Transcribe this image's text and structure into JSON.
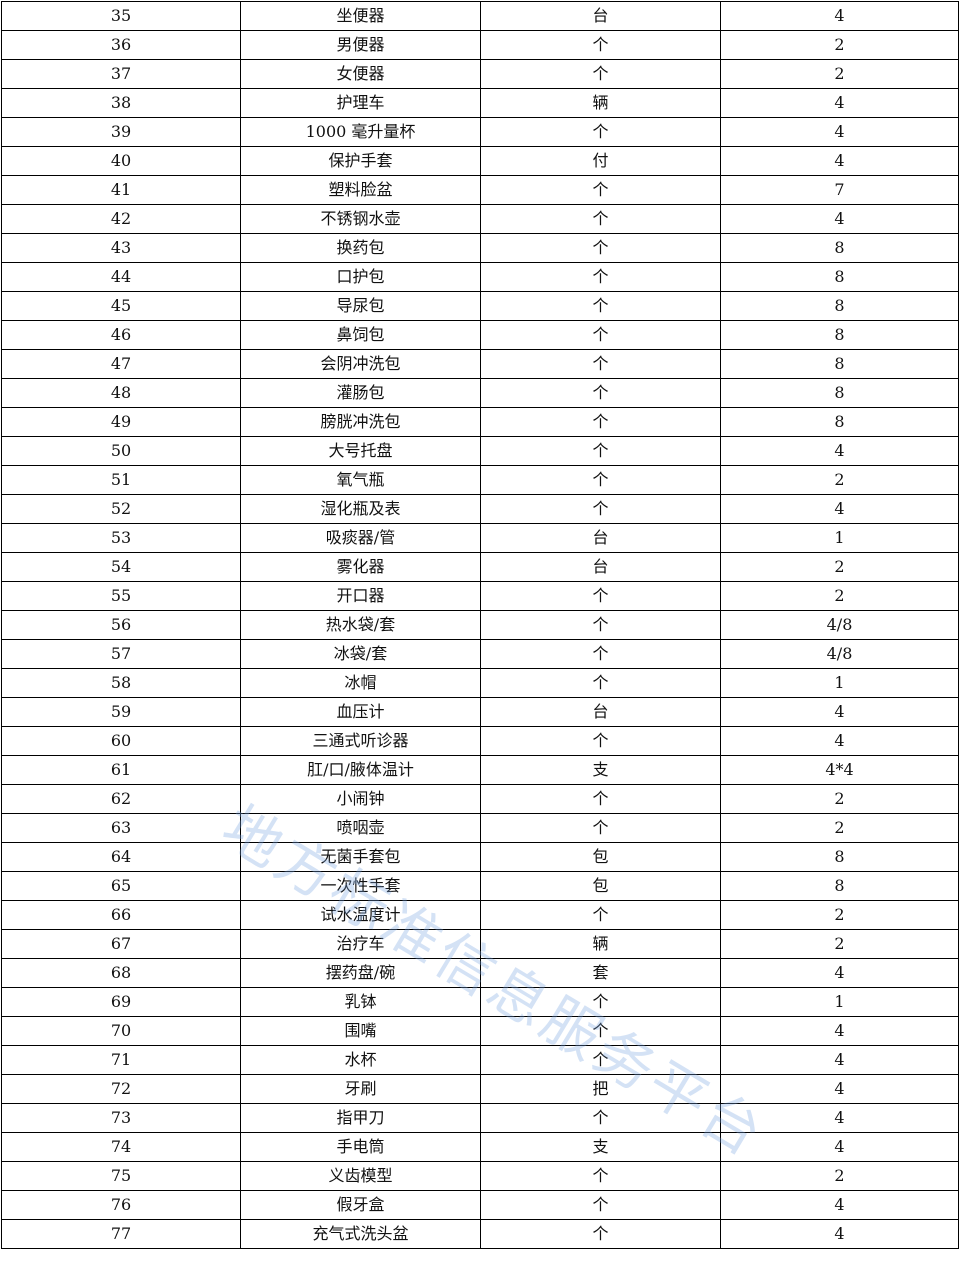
{
  "table": {
    "rows": [
      [
        "35",
        "坐便器",
        "台",
        "4"
      ],
      [
        "36",
        "男便器",
        "个",
        "2"
      ],
      [
        "37",
        "女便器",
        "个",
        "2"
      ],
      [
        "38",
        "护理车",
        "辆",
        "4"
      ],
      [
        "39",
        "1000 毫升量杯",
        "个",
        "4"
      ],
      [
        "40",
        "保护手套",
        "付",
        "4"
      ],
      [
        "41",
        "塑料脸盆",
        "个",
        "7"
      ],
      [
        "42",
        "不锈钢水壶",
        "个",
        "4"
      ],
      [
        "43",
        "换药包",
        "个",
        "8"
      ],
      [
        "44",
        "口护包",
        "个",
        "8"
      ],
      [
        "45",
        "导尿包",
        "个",
        "8"
      ],
      [
        "46",
        "鼻饲包",
        "个",
        "8"
      ],
      [
        "47",
        "会阴冲洗包",
        "个",
        "8"
      ],
      [
        "48",
        "灌肠包",
        "个",
        "8"
      ],
      [
        "49",
        "膀胱冲洗包",
        "个",
        "8"
      ],
      [
        "50",
        "大号托盘",
        "个",
        "4"
      ],
      [
        "51",
        "氧气瓶",
        "个",
        "2"
      ],
      [
        "52",
        "湿化瓶及表",
        "个",
        "4"
      ],
      [
        "53",
        "吸痰器/管",
        "台",
        "1"
      ],
      [
        "54",
        "雾化器",
        "台",
        "2"
      ],
      [
        "55",
        "开口器",
        "个",
        "2"
      ],
      [
        "56",
        "热水袋/套",
        "个",
        "4/8"
      ],
      [
        "57",
        "冰袋/套",
        "个",
        "4/8"
      ],
      [
        "58",
        "冰帽",
        "个",
        "1"
      ],
      [
        "59",
        "血压计",
        "台",
        "4"
      ],
      [
        "60",
        "三通式听诊器",
        "个",
        "4"
      ],
      [
        "61",
        "肛/口/腋体温计",
        "支",
        "4*4"
      ],
      [
        "62",
        "小闹钟",
        "个",
        "2"
      ],
      [
        "63",
        "喷咽壶",
        "个",
        "2"
      ],
      [
        "64",
        "无菌手套包",
        "包",
        "8"
      ],
      [
        "65",
        "一次性手套",
        "包",
        "8"
      ],
      [
        "66",
        "试水温度计",
        "个",
        "2"
      ],
      [
        "67",
        "治疗车",
        "辆",
        "2"
      ],
      [
        "68",
        "摆药盘/碗",
        "套",
        "4"
      ],
      [
        "69",
        "乳钵",
        "个",
        "1"
      ],
      [
        "70",
        "围嘴",
        "个",
        "4"
      ],
      [
        "71",
        "水杯",
        "个",
        "4"
      ],
      [
        "72",
        "牙刷",
        "把",
        "4"
      ],
      [
        "73",
        "指甲刀",
        "个",
        "4"
      ],
      [
        "74",
        "手电筒",
        "支",
        "4"
      ],
      [
        "75",
        "义齿模型",
        "个",
        "2"
      ],
      [
        "76",
        "假牙盒",
        "个",
        "4"
      ],
      [
        "77",
        "充气式洗头盆",
        "个",
        "4"
      ]
    ]
  },
  "watermark": {
    "text": "地方标准信息服务平台",
    "color": "#78a5e1"
  }
}
